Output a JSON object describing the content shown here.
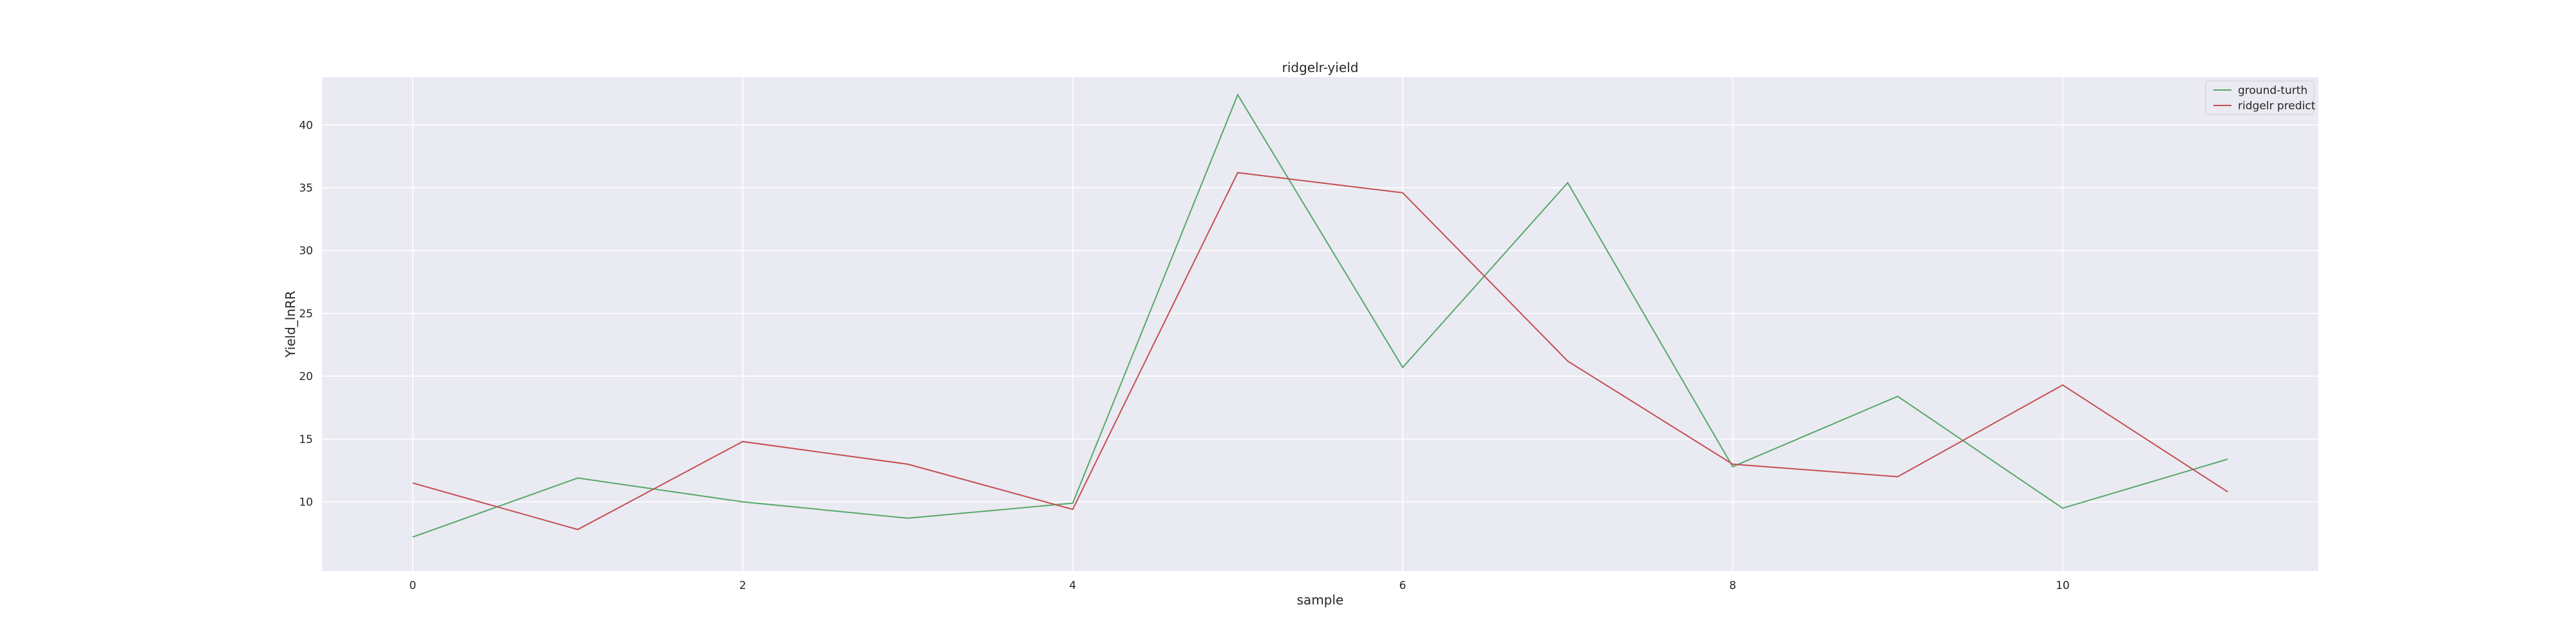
{
  "chart_data": {
    "type": "line",
    "title": "ridgelr-yield",
    "xlabel": "sample",
    "ylabel": "Yield_lnRR",
    "xlim": [
      -0.55,
      11.55
    ],
    "ylim": [
      4.5,
      43.8
    ],
    "xticks": [
      0,
      2,
      4,
      6,
      8,
      10
    ],
    "yticks": [
      10,
      15,
      20,
      25,
      30,
      35,
      40
    ],
    "grid": true,
    "legend_position": "top-right",
    "x": [
      0,
      1,
      2,
      3,
      4,
      5,
      6,
      7,
      8,
      9,
      10,
      11
    ],
    "series": [
      {
        "name": "ground-turth",
        "color": "#55a868",
        "values": [
          7.2,
          11.9,
          10.0,
          8.7,
          9.9,
          42.4,
          20.7,
          35.4,
          12.8,
          18.4,
          9.5,
          13.4
        ]
      },
      {
        "name": "ridgelr predict",
        "color": "#c44e52",
        "values": [
          11.5,
          7.8,
          14.8,
          13.0,
          9.4,
          36.2,
          34.6,
          21.2,
          13.0,
          12.0,
          19.3,
          10.8
        ]
      }
    ],
    "colors": {
      "plot_background": "#eaeaf2",
      "grid": "#ffffff"
    }
  }
}
